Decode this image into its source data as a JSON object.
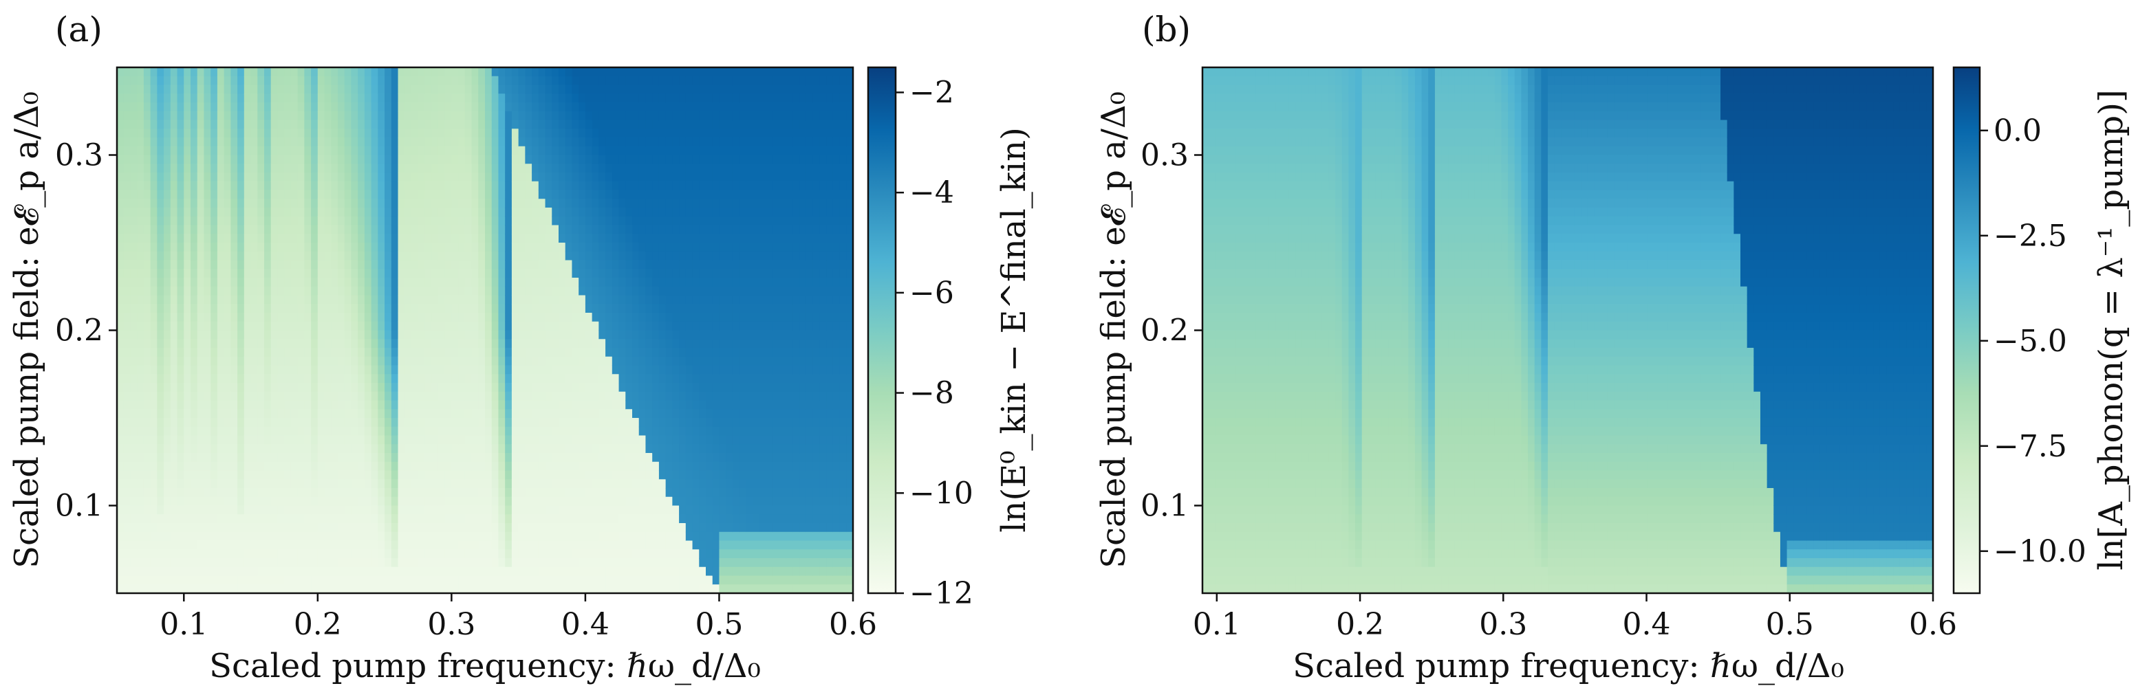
{
  "chart_data": [
    {
      "type": "heatmap",
      "panel_label": "(a)",
      "xlabel": "Scaled pump frequency: ℏω_d/Δ₀",
      "ylabel": "Scaled pump field: e𝓔_p a/Δ₀",
      "xlim": [
        0.05,
        0.6
      ],
      "ylim": [
        0.05,
        0.35
      ],
      "xticks": [
        0.1,
        0.2,
        0.3,
        0.4,
        0.5,
        0.6
      ],
      "xtick_labels": [
        "0.1",
        "0.2",
        "0.3",
        "0.4",
        "0.5",
        "0.6"
      ],
      "yticks": [
        0.1,
        0.2,
        0.3
      ],
      "ytick_labels": [
        "0.1",
        "0.2",
        "0.3"
      ],
      "colorbar": {
        "label": "ln(E⁰_kin − E^final_kin)",
        "range": [
          -12,
          -1.5
        ],
        "ticks": [
          -2,
          -4,
          -6,
          -8,
          -10,
          -12
        ],
        "tick_labels": [
          "−2",
          "−4",
          "−6",
          "−8",
          "−10",
          "−12"
        ],
        "colormap": "GnBu"
      },
      "features": {
        "resonance_ridges_x": [
          0.25,
          0.333,
          0.5
        ],
        "high_value_region": "x > 0.5 / ridge above 0.45"
      }
    },
    {
      "type": "heatmap",
      "panel_label": "(b)",
      "xlabel": "Scaled pump frequency: ℏω_d/Δ₀",
      "ylabel": "Scaled pump field: e𝓔_p a/Δ₀",
      "xlim": [
        0.09,
        0.6
      ],
      "ylim": [
        0.05,
        0.35
      ],
      "xticks": [
        0.1,
        0.2,
        0.3,
        0.4,
        0.5,
        0.6
      ],
      "xtick_labels": [
        "0.1",
        "0.2",
        "0.3",
        "0.4",
        "0.5",
        "0.6"
      ],
      "yticks": [
        0.1,
        0.2,
        0.3
      ],
      "ytick_labels": [
        "0.1",
        "0.2",
        "0.3"
      ],
      "colorbar": {
        "label": "ln[A_phonon(q = λ⁻¹_pump)]",
        "range": [
          -11,
          1.5
        ],
        "ticks": [
          0.0,
          -2.5,
          -5.0,
          -7.5,
          -10.0
        ],
        "tick_labels": [
          "0.0",
          "−2.5",
          "−5.0",
          "−7.5",
          "−10.0"
        ],
        "colormap": "GnBu"
      },
      "features": {
        "resonance_ridges_x": [
          0.2,
          0.25,
          0.333,
          0.5
        ],
        "high_value_region": "x > 0.5 / ridge above 0.45"
      }
    }
  ],
  "colors": {
    "gnbu": [
      "#f7fcf0",
      "#e0f3db",
      "#ccebc5",
      "#a8ddb5",
      "#7bccc4",
      "#4eb3d3",
      "#2b8cbe",
      "#0868ac",
      "#084081"
    ]
  }
}
